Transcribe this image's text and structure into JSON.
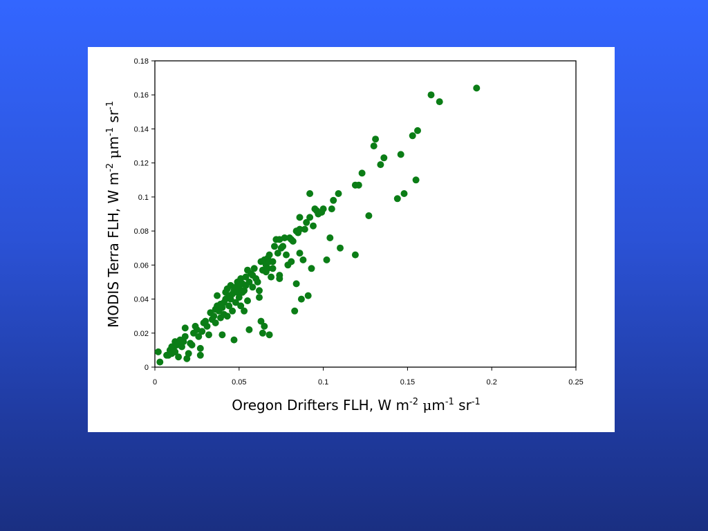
{
  "colors": {
    "background_top": "#3366ff",
    "background_bottom": "#1a2f82",
    "marker": "#0b7d16",
    "panel": "#ffffff"
  },
  "chart_data": {
    "type": "scatter",
    "title": "",
    "xlabel": {
      "base": "Oregon Drifters FLH, W m",
      "exp1": "-2",
      "mid1": " ",
      "mu": "μ",
      "mid2": "m",
      "exp2": "-1",
      "mid3": " sr",
      "exp3": "-1"
    },
    "ylabel": {
      "base": "MODIS Terra FLH, W m",
      "exp1": "-2",
      "mid1": " ",
      "mu": "μ",
      "mid2": "m",
      "exp2": "-1",
      "mid3": " sr",
      "exp3": "-1"
    },
    "xlim": [
      0,
      0.25
    ],
    "ylim": [
      0,
      0.18
    ],
    "x_ticks": [
      "0",
      "0.05",
      "0.1",
      "0.15",
      "0.2",
      "0.25"
    ],
    "y_ticks": [
      "0",
      "0.02",
      "0.04",
      "0.06",
      "0.08",
      "0.1",
      "0.12",
      "0.14",
      "0.16",
      "0.18"
    ],
    "x_tick_values": [
      0,
      0.05,
      0.1,
      0.15,
      0.2,
      0.25
    ],
    "y_tick_values": [
      0,
      0.02,
      0.04,
      0.06,
      0.08,
      0.1,
      0.12,
      0.14,
      0.16,
      0.18
    ],
    "grid": false,
    "legend": "none",
    "series": [
      {
        "points": [
          [
            0.002,
            0.009
          ],
          [
            0.003,
            0.003
          ],
          [
            0.007,
            0.007
          ],
          [
            0.008,
            0.007
          ],
          [
            0.009,
            0.01
          ],
          [
            0.01,
            0.008
          ],
          [
            0.01,
            0.012
          ],
          [
            0.011,
            0.011
          ],
          [
            0.012,
            0.015
          ],
          [
            0.012,
            0.009
          ],
          [
            0.013,
            0.013
          ],
          [
            0.014,
            0.014
          ],
          [
            0.014,
            0.006
          ],
          [
            0.015,
            0.016
          ],
          [
            0.016,
            0.012
          ],
          [
            0.017,
            0.015
          ],
          [
            0.018,
            0.018
          ],
          [
            0.018,
            0.023
          ],
          [
            0.019,
            0.005
          ],
          [
            0.02,
            0.008
          ],
          [
            0.021,
            0.014
          ],
          [
            0.022,
            0.013
          ],
          [
            0.023,
            0.02
          ],
          [
            0.024,
            0.024
          ],
          [
            0.025,
            0.022
          ],
          [
            0.026,
            0.018
          ],
          [
            0.027,
            0.011
          ],
          [
            0.027,
            0.007
          ],
          [
            0.028,
            0.021
          ],
          [
            0.029,
            0.026
          ],
          [
            0.03,
            0.027
          ],
          [
            0.031,
            0.024
          ],
          [
            0.032,
            0.019
          ],
          [
            0.033,
            0.032
          ],
          [
            0.034,
            0.028
          ],
          [
            0.035,
            0.03
          ],
          [
            0.036,
            0.026
          ],
          [
            0.036,
            0.034
          ],
          [
            0.037,
            0.042
          ],
          [
            0.037,
            0.036
          ],
          [
            0.038,
            0.033
          ],
          [
            0.039,
            0.029
          ],
          [
            0.039,
            0.037
          ],
          [
            0.04,
            0.035
          ],
          [
            0.04,
            0.019
          ],
          [
            0.041,
            0.038
          ],
          [
            0.041,
            0.031
          ],
          [
            0.042,
            0.04
          ],
          [
            0.042,
            0.044
          ],
          [
            0.043,
            0.03
          ],
          [
            0.043,
            0.046
          ],
          [
            0.044,
            0.042
          ],
          [
            0.044,
            0.036
          ],
          [
            0.045,
            0.048
          ],
          [
            0.045,
            0.04
          ],
          [
            0.046,
            0.033
          ],
          [
            0.046,
            0.043
          ],
          [
            0.047,
            0.045
          ],
          [
            0.047,
            0.016
          ],
          [
            0.048,
            0.047
          ],
          [
            0.048,
            0.038
          ],
          [
            0.049,
            0.044
          ],
          [
            0.049,
            0.05
          ],
          [
            0.05,
            0.041
          ],
          [
            0.05,
            0.047
          ],
          [
            0.051,
            0.052
          ],
          [
            0.051,
            0.036
          ],
          [
            0.052,
            0.049
          ],
          [
            0.052,
            0.044
          ],
          [
            0.053,
            0.045
          ],
          [
            0.053,
            0.033
          ],
          [
            0.054,
            0.053
          ],
          [
            0.054,
            0.048
          ],
          [
            0.055,
            0.057
          ],
          [
            0.055,
            0.039
          ],
          [
            0.056,
            0.05
          ],
          [
            0.056,
            0.022
          ],
          [
            0.057,
            0.055
          ],
          [
            0.058,
            0.054
          ],
          [
            0.058,
            0.047
          ],
          [
            0.059,
            0.058
          ],
          [
            0.06,
            0.052
          ],
          [
            0.061,
            0.05
          ],
          [
            0.062,
            0.045
          ],
          [
            0.062,
            0.041
          ],
          [
            0.063,
            0.062
          ],
          [
            0.063,
            0.027
          ],
          [
            0.064,
            0.02
          ],
          [
            0.064,
            0.057
          ],
          [
            0.065,
            0.063
          ],
          [
            0.065,
            0.024
          ],
          [
            0.066,
            0.06
          ],
          [
            0.066,
            0.056
          ],
          [
            0.067,
            0.064
          ],
          [
            0.067,
            0.058
          ],
          [
            0.068,
            0.066
          ],
          [
            0.068,
            0.062
          ],
          [
            0.068,
            0.019
          ],
          [
            0.069,
            0.053
          ],
          [
            0.07,
            0.062
          ],
          [
            0.07,
            0.058
          ],
          [
            0.071,
            0.071
          ],
          [
            0.072,
            0.075
          ],
          [
            0.073,
            0.067
          ],
          [
            0.074,
            0.075
          ],
          [
            0.074,
            0.054
          ],
          [
            0.074,
            0.052
          ],
          [
            0.075,
            0.07
          ],
          [
            0.076,
            0.071
          ],
          [
            0.077,
            0.076
          ],
          [
            0.078,
            0.066
          ],
          [
            0.079,
            0.06
          ],
          [
            0.08,
            0.076
          ],
          [
            0.081,
            0.075
          ],
          [
            0.081,
            0.062
          ],
          [
            0.082,
            0.074
          ],
          [
            0.083,
            0.033
          ],
          [
            0.084,
            0.08
          ],
          [
            0.084,
            0.049
          ],
          [
            0.085,
            0.079
          ],
          [
            0.086,
            0.081
          ],
          [
            0.086,
            0.088
          ],
          [
            0.086,
            0.067
          ],
          [
            0.087,
            0.04
          ],
          [
            0.088,
            0.063
          ],
          [
            0.089,
            0.081
          ],
          [
            0.09,
            0.085
          ],
          [
            0.091,
            0.042
          ],
          [
            0.092,
            0.102
          ],
          [
            0.092,
            0.088
          ],
          [
            0.093,
            0.058
          ],
          [
            0.094,
            0.083
          ],
          [
            0.095,
            0.093
          ],
          [
            0.096,
            0.092
          ],
          [
            0.097,
            0.09
          ],
          [
            0.099,
            0.091
          ],
          [
            0.1,
            0.093
          ],
          [
            0.102,
            0.063
          ],
          [
            0.104,
            0.076
          ],
          [
            0.105,
            0.093
          ],
          [
            0.106,
            0.098
          ],
          [
            0.109,
            0.102
          ],
          [
            0.11,
            0.07
          ],
          [
            0.119,
            0.066
          ],
          [
            0.119,
            0.107
          ],
          [
            0.121,
            0.107
          ],
          [
            0.123,
            0.114
          ],
          [
            0.127,
            0.089
          ],
          [
            0.13,
            0.13
          ],
          [
            0.131,
            0.134
          ],
          [
            0.134,
            0.119
          ],
          [
            0.136,
            0.123
          ],
          [
            0.144,
            0.099
          ],
          [
            0.146,
            0.125
          ],
          [
            0.148,
            0.102
          ],
          [
            0.153,
            0.136
          ],
          [
            0.155,
            0.11
          ],
          [
            0.156,
            0.139
          ],
          [
            0.164,
            0.16
          ],
          [
            0.169,
            0.156
          ],
          [
            0.191,
            0.164
          ]
        ]
      }
    ]
  }
}
